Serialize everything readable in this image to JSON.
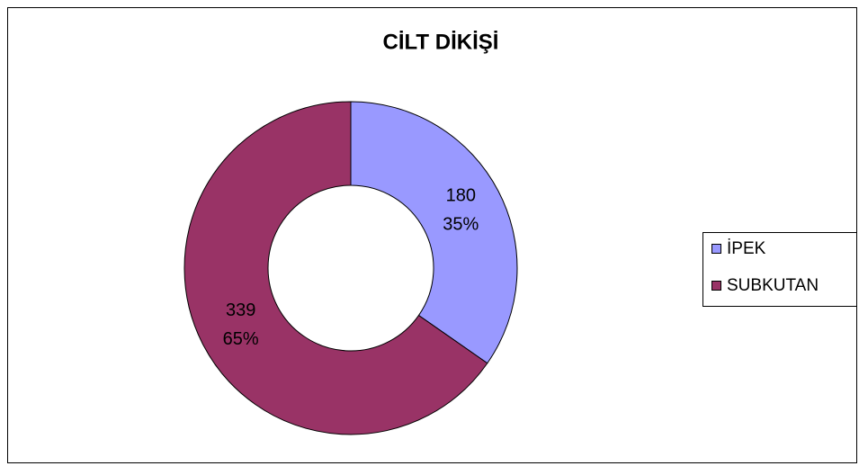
{
  "chart_data": {
    "type": "donut",
    "title": "CİLT DİKİŞİ",
    "categories": [
      "İPEK",
      "SUBKUTAN"
    ],
    "values": [
      180,
      339
    ],
    "percent_labels": [
      "35%",
      "65%"
    ],
    "colors": [
      "#9999ff",
      "#993366"
    ],
    "legend": "right"
  }
}
